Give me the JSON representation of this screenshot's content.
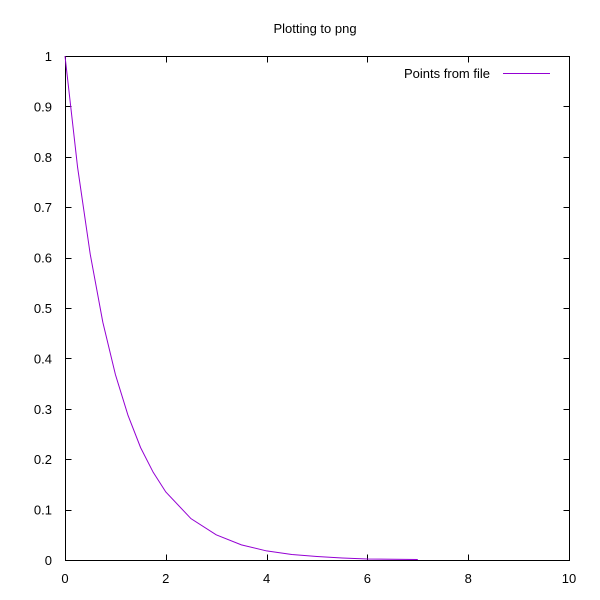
{
  "chart_data": {
    "type": "line",
    "title": "Plotting to png",
    "xlabel": "",
    "ylabel": "",
    "xlim": [
      0,
      10
    ],
    "ylim": [
      0,
      1
    ],
    "xticks": [
      0,
      2,
      4,
      6,
      8,
      10
    ],
    "xtick_labels": [
      "0",
      "2",
      "4",
      "6",
      "8",
      "10"
    ],
    "yticks": [
      0,
      0.1,
      0.2,
      0.3,
      0.4,
      0.5,
      0.6,
      0.7,
      0.8,
      0.9,
      1
    ],
    "ytick_labels": [
      "0",
      "0.1",
      "0.2",
      "0.3",
      "0.4",
      "0.5",
      "0.6",
      "0.7",
      "0.8",
      "0.9",
      "1"
    ],
    "grid": false,
    "legend_position": "top-right",
    "series": [
      {
        "name": "Points from file",
        "color": "#9400d3",
        "x": [
          0,
          0.25,
          0.5,
          0.75,
          1,
          1.25,
          1.5,
          1.75,
          2,
          2.5,
          3,
          3.5,
          4,
          4.5,
          5,
          5.5,
          6,
          6.5,
          7
        ],
        "y": [
          1,
          0.779,
          0.607,
          0.472,
          0.368,
          0.287,
          0.223,
          0.174,
          0.135,
          0.082,
          0.05,
          0.03,
          0.018,
          0.011,
          0.007,
          0.004,
          0.002,
          0.0015,
          0.001
        ]
      }
    ]
  }
}
